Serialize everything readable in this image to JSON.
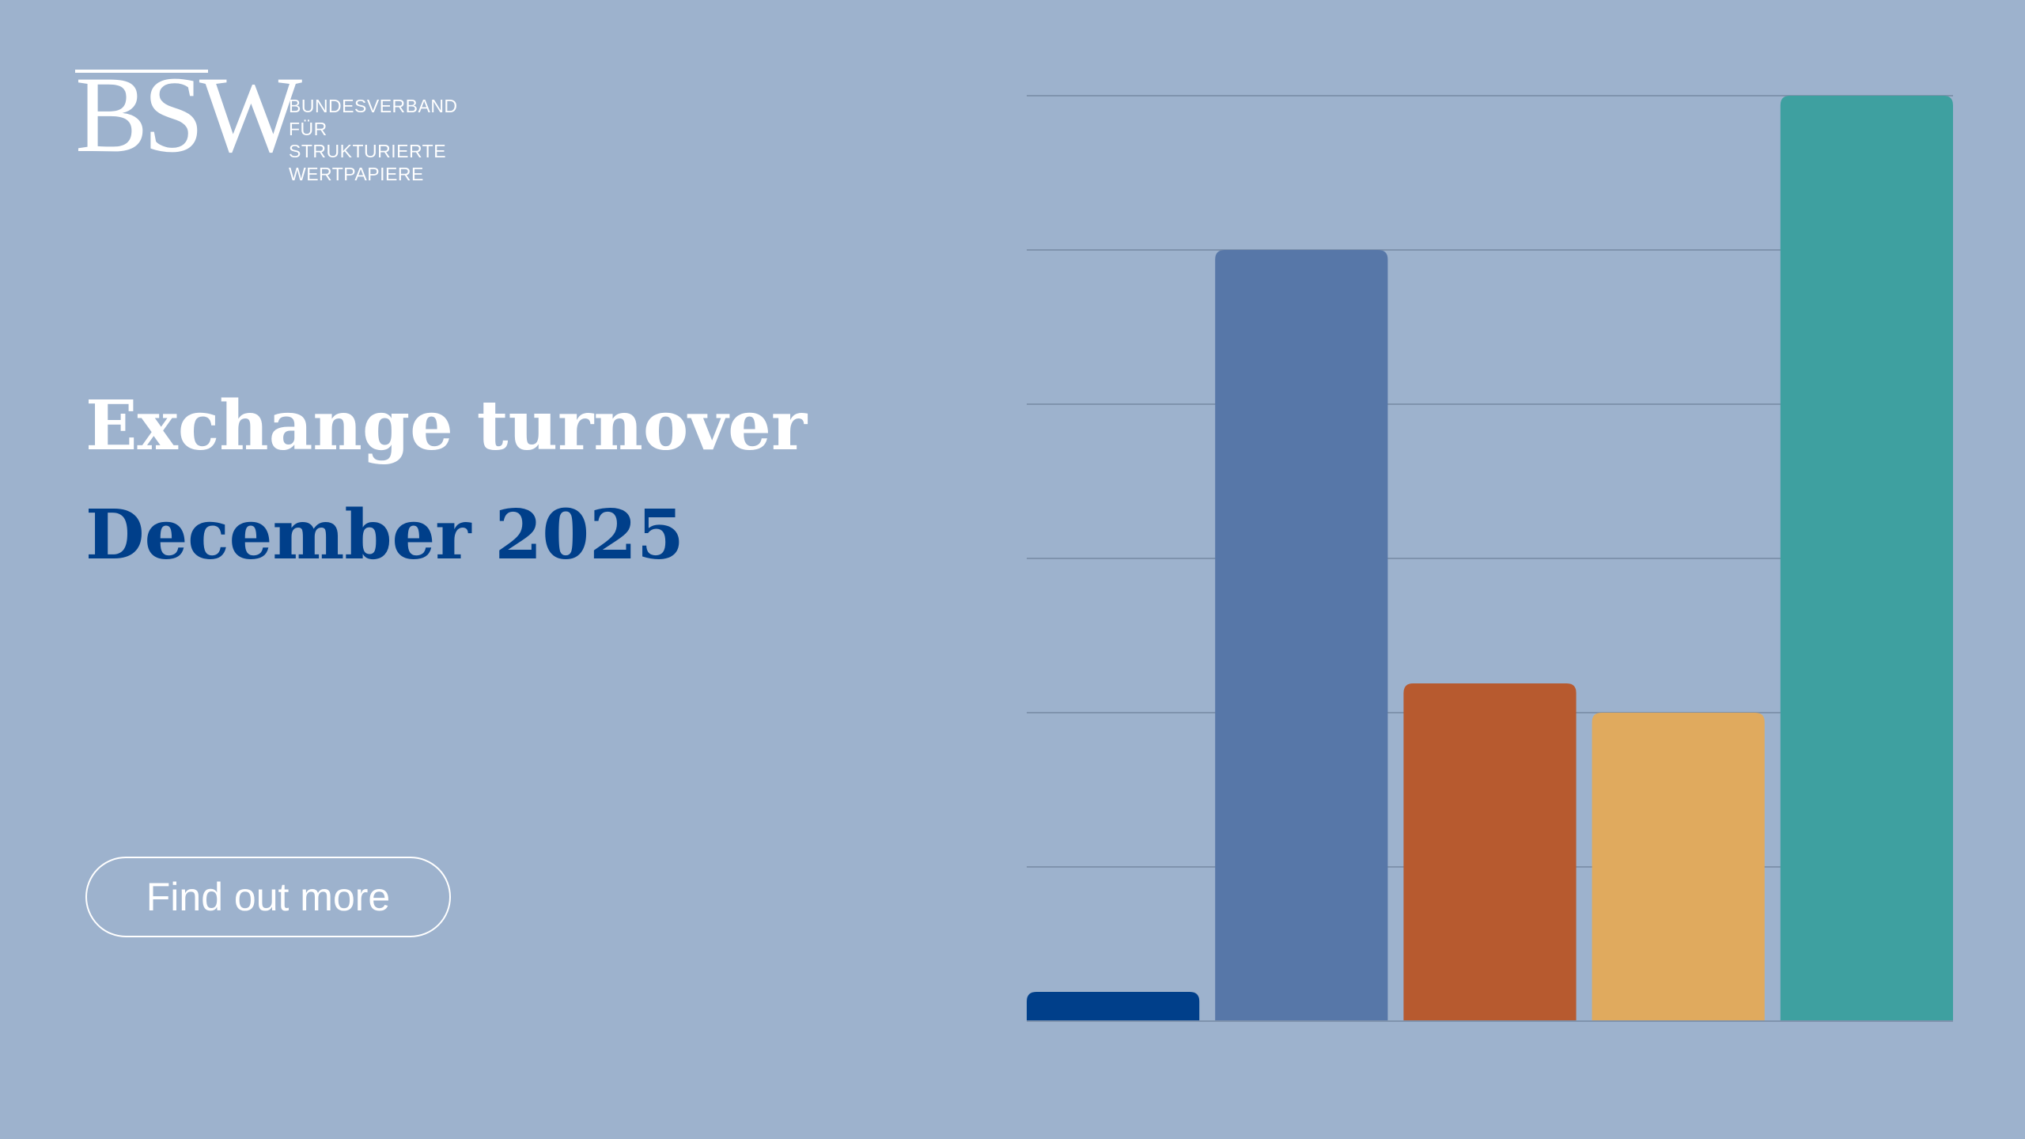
{
  "logo": {
    "letters": "BSW",
    "lines": [
      "BUNDESVERBAND",
      "FÜR STRUKTURIERTE",
      "WERTPAPIERE"
    ]
  },
  "headline": {
    "title": "Exchange turnover",
    "subtitle": "December 2025"
  },
  "cta": {
    "label": "Find out more"
  },
  "colors": {
    "background": "#9db2cd",
    "subtitle": "#003f8a",
    "gridline": "#7f93ad"
  },
  "chart_data": {
    "type": "bar",
    "title": "",
    "xlabel": "",
    "ylabel": "",
    "categories": [
      "",
      "",
      "",
      "",
      ""
    ],
    "values": [
      0.19,
      5.0,
      2.19,
      2.0,
      6.0
    ],
    "colors": [
      "#003f8a",
      "#5777a8",
      "#b75a2f",
      "#e0aa5e",
      "#3ea0a0"
    ],
    "ylim": [
      0,
      6
    ],
    "gridlines": [
      1,
      2,
      3,
      4,
      5,
      6
    ],
    "grid": true,
    "axis_labels_shown": false,
    "legend": "none"
  }
}
